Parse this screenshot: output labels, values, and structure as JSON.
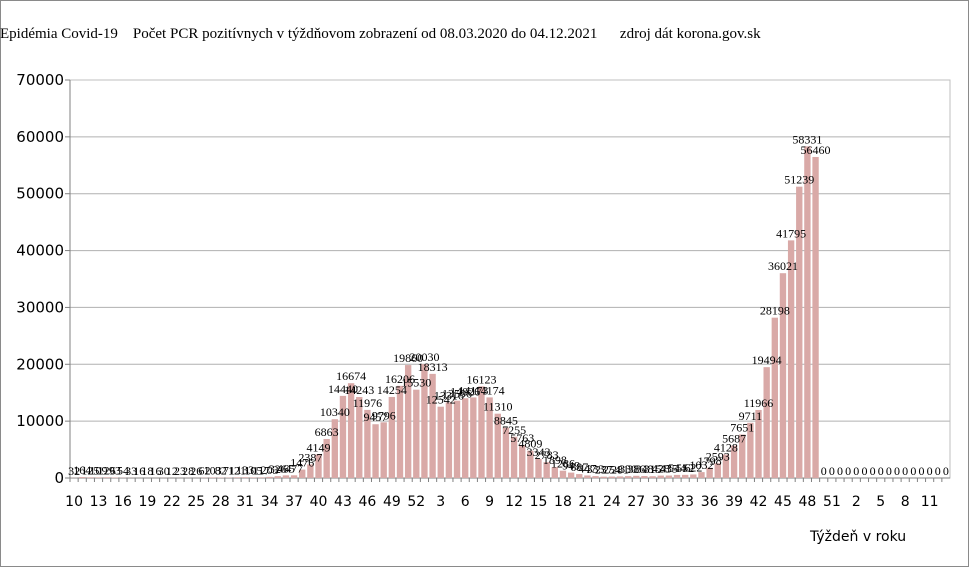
{
  "header": {
    "title": "Epidémia Covid-19    Počet PCR pozitívnych v týždňovom zobrazení od 08.03.2020 do 04.12.2021      zdroj dát korona.gov.sk"
  },
  "chart_data": {
    "type": "bar",
    "title": "Epidémia Covid-19    Počet PCR pozitívnych v týždňovom zobrazení od 08.03.2020 do 04.12.2021      zdroj dát korona.gov.sk",
    "xlabel": "Týždeň v roku",
    "ylabel": "",
    "ylim": [
      0,
      70000
    ],
    "yticks": [
      "0",
      "10000",
      "20000",
      "30000",
      "40000",
      "50000",
      "60000",
      "70000"
    ],
    "grid": true,
    "legend": "none",
    "bar_color": "#d9a9a7",
    "categories": [
      "10",
      "11",
      "12",
      "13",
      "14",
      "15",
      "16",
      "17",
      "18",
      "19",
      "20",
      "21",
      "22",
      "23",
      "24",
      "25",
      "26",
      "27",
      "28",
      "29",
      "30",
      "31",
      "32",
      "33",
      "34",
      "35",
      "36",
      "37",
      "38",
      "39",
      "40",
      "41",
      "42",
      "43",
      "44",
      "45",
      "46",
      "47",
      "48",
      "49",
      "50",
      "51",
      "52",
      "53",
      "1",
      "2",
      "3",
      "4",
      "5",
      "6",
      "7",
      "8",
      "9",
      "10",
      "11",
      "12",
      "13",
      "14",
      "15",
      "16",
      "17",
      "18",
      "19",
      "20",
      "21",
      "22",
      "23",
      "24",
      "25",
      "26",
      "27",
      "28",
      "29",
      "30",
      "31",
      "32",
      "33",
      "34",
      "35",
      "36",
      "37",
      "38",
      "39",
      "40",
      "41",
      "42",
      "43",
      "44",
      "45",
      "46",
      "47",
      "48",
      "49",
      "50",
      "51",
      "52",
      "1",
      "2",
      "3",
      "4",
      "5",
      "6",
      "7",
      "8",
      "9",
      "10",
      "11",
      "12"
    ],
    "xtick_labels": [
      "10",
      "13",
      "16",
      "19",
      "22",
      "25",
      "28",
      "31",
      "34",
      "37",
      "40",
      "43",
      "46",
      "49",
      "52",
      "3",
      "6",
      "9",
      "12",
      "15",
      "18",
      "21",
      "24",
      "27",
      "30",
      "33",
      "36",
      "39",
      "42",
      "45",
      "48",
      "51",
      "2",
      "5",
      "8",
      "11"
    ],
    "values": [
      32,
      164,
      125,
      109,
      126,
      93,
      54,
      33,
      16,
      18,
      16,
      30,
      12,
      23,
      28,
      26,
      62,
      103,
      82,
      71,
      121,
      133,
      105,
      117,
      203,
      326,
      465,
      477,
      1476,
      2387,
      4149,
      6863,
      10340,
      14440,
      16674,
      14243,
      11976,
      9457,
      9796,
      14254,
      16206,
      19860,
      15530,
      20030,
      18313,
      12542,
      13316,
      13596,
      14026,
      14173,
      16123,
      14174,
      11310,
      8845,
      7255,
      5763,
      4809,
      3343,
      2783,
      1898,
      1286,
      949,
      687,
      447,
      333,
      237,
      254,
      281,
      330,
      386,
      348,
      315,
      428,
      435,
      544,
      552,
      622,
      1032,
      1798,
      2593,
      4128,
      5687,
      7651,
      9711,
      11966,
      19494,
      28198,
      36021,
      41795,
      51239,
      58331,
      56460,
      0,
      0,
      0,
      0,
      0,
      0,
      0,
      0,
      0,
      0,
      0,
      0,
      0,
      0,
      0,
      0
    ],
    "data_labels": [
      "32",
      "164",
      "125",
      "109",
      "126",
      "93",
      "54",
      "33",
      "16",
      "18",
      "16",
      "30",
      "12",
      "23",
      "28",
      "26",
      "62",
      "103",
      "82",
      "71",
      "121",
      "133",
      "105",
      "117",
      "203",
      "326",
      "465",
      "477",
      "1476",
      "2387",
      "4149",
      "6863",
      "10340",
      "14440",
      "16674",
      "14243",
      "11976",
      "9457",
      "9796",
      "14254",
      "16206",
      "19860",
      "15530",
      "20030",
      "18313",
      "12542",
      "13316",
      "13596",
      "14026",
      "14173",
      "16123",
      "14174",
      "11310",
      "8845",
      "7255",
      "5763",
      "4809",
      "3343",
      "2783",
      "1898",
      "1286",
      "949",
      "687",
      "447",
      "333",
      "237",
      "254",
      "281",
      "330",
      "386",
      "348",
      "315",
      "428",
      "435",
      "544",
      "552",
      "622",
      "1032",
      "1798",
      "2593",
      "4128",
      "5687",
      "7651",
      "9711",
      "11966",
      "19494",
      "28198",
      "36021",
      "41795",
      "51239",
      "58331",
      "56460",
      "0",
      "0",
      "0",
      "0",
      "0",
      "0",
      "0",
      "0",
      "0",
      "0",
      "0",
      "0",
      "0",
      "0",
      "0",
      "0"
    ]
  }
}
